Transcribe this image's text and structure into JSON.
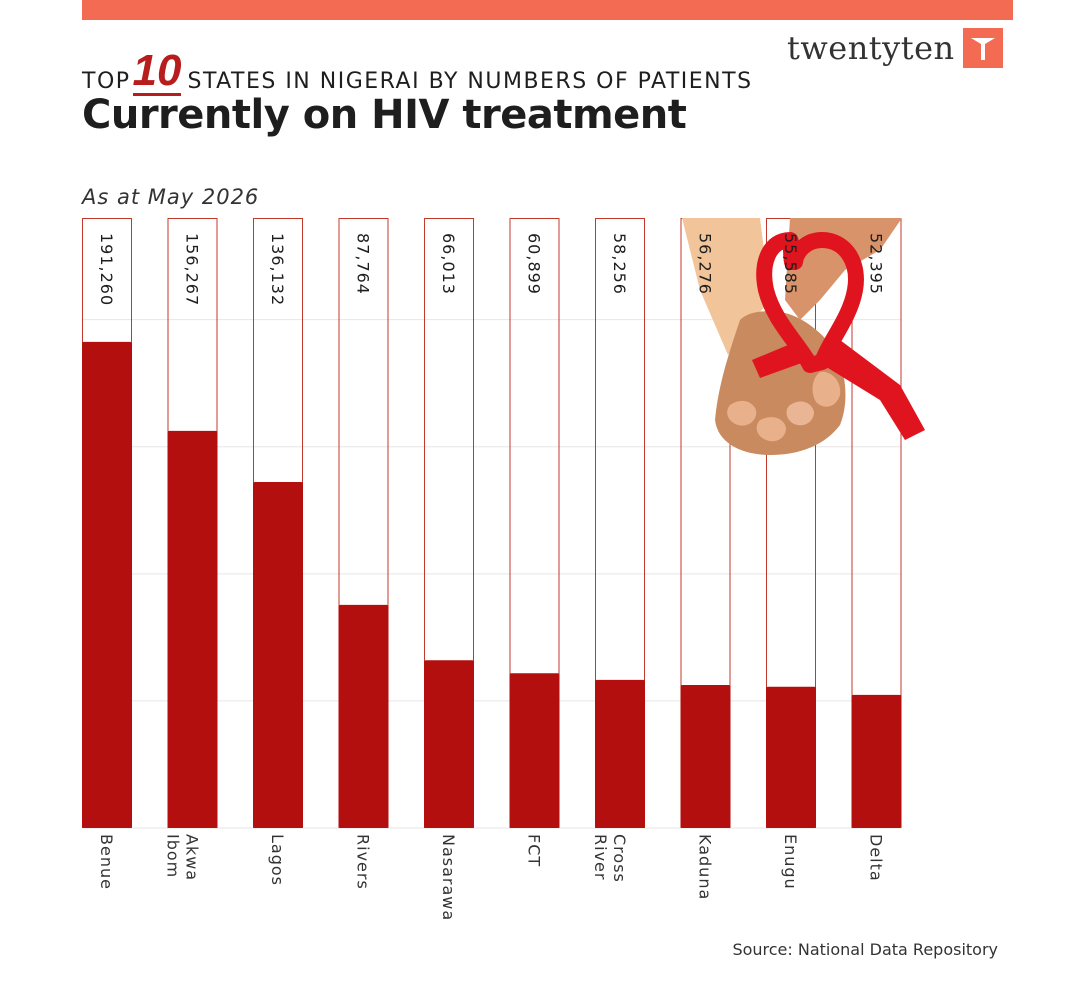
{
  "header": {
    "kicker_pre": "TOP",
    "kicker_number": "10",
    "kicker_post": "STATES IN NIGERAI BY NUMBERS OF PATIENTS",
    "title": "Currently on HIV treatment",
    "subtitle": "As at May 2026"
  },
  "brand": {
    "name": "twentyten"
  },
  "footer": {
    "source": "Source: National Data Repository"
  },
  "colors": {
    "bar": "#b30f0f",
    "outline": "#c0392b",
    "accent": "#f26b52",
    "ribbon": "#e0141e"
  },
  "illustration": {
    "name": "hands-with-red-ribbon"
  },
  "chart_data": {
    "type": "bar",
    "orientation": "vertical",
    "categories": [
      "Benue",
      "Akwa Ibom",
      "Lagos",
      "Rivers",
      "Nasarawa",
      "FCT",
      "Cross River",
      "Kaduna",
      "Enugu",
      "Delta"
    ],
    "values": [
      191260,
      156267,
      136132,
      87764,
      66013,
      60899,
      58256,
      56276,
      55585,
      52395
    ],
    "value_labels": [
      "191,260",
      "156,267",
      "136,132",
      "87,764",
      "66,013",
      "60,899",
      "58,256",
      "56,276",
      "55,585",
      "52,395"
    ],
    "ylim": [
      0,
      240000
    ],
    "grid": true
  }
}
